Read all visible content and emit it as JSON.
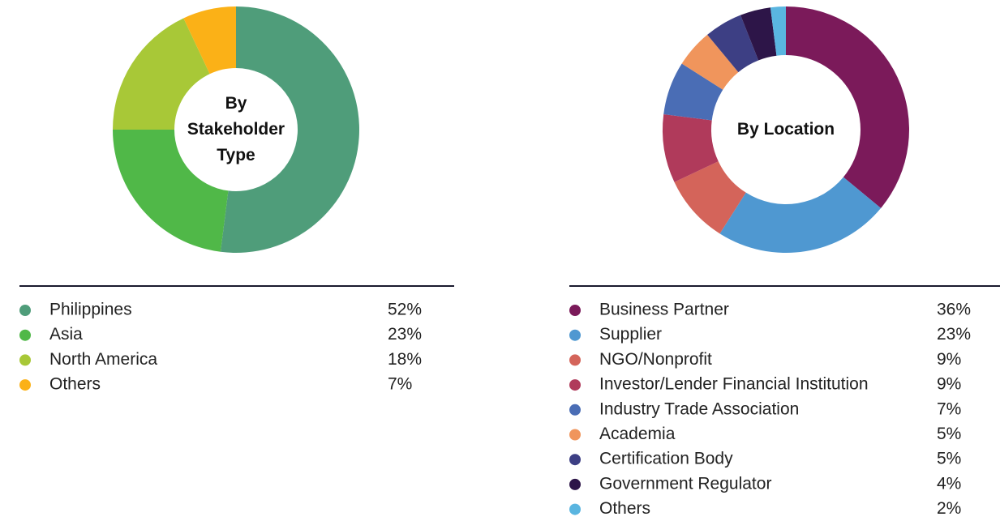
{
  "chart_data": [
    {
      "type": "donut",
      "title": "By Stakeholder Type",
      "categories": [
        "Philippines",
        "Asia",
        "North America",
        "Others"
      ],
      "values": [
        52,
        23,
        18,
        7
      ],
      "value_labels": [
        "52%",
        "23%",
        "18%",
        "7%"
      ],
      "colors": [
        "#4f9d7a",
        "#50b848",
        "#a8c837",
        "#fbb117"
      ]
    },
    {
      "type": "donut",
      "title": "By Location",
      "categories": [
        "Business Partner",
        "Supplier",
        "NGO/Nonprofit",
        "Investor/Lender Financial Institution",
        "Industry Trade Association",
        "Academia",
        "Certification Body",
        "Government Regulator",
        "Others"
      ],
      "values": [
        36,
        23,
        9,
        9,
        7,
        5,
        5,
        4,
        2
      ],
      "value_labels": [
        "36%",
        "23%",
        "9%",
        "9%",
        "7%",
        "5%",
        "5%",
        "4%",
        "2%"
      ],
      "colors": [
        "#7b1a5a",
        "#4f98d1",
        "#d4645a",
        "#b03a5b",
        "#4a6db5",
        "#f0955c",
        "#3d3f84",
        "#2d1548",
        "#5ab5e0"
      ]
    }
  ]
}
